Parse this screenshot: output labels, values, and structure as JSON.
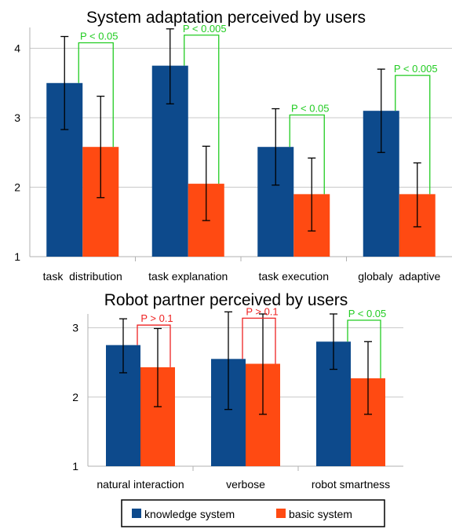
{
  "chart_data": [
    {
      "type": "bar",
      "title": "System adaptation perceived by users",
      "categories": [
        "task  distribution",
        "task explanation",
        "task execution",
        "globaly  adaptive"
      ],
      "ylim": [
        1,
        4.3
      ],
      "yticks": [
        1,
        2,
        3,
        4
      ],
      "series": [
        {
          "name": "knowledge system",
          "values": [
            3.5,
            3.75,
            2.58,
            3.1
          ],
          "err_low": [
            2.83,
            3.2,
            2.03,
            2.5
          ],
          "err_high": [
            4.17,
            4.28,
            3.13,
            3.7
          ]
        },
        {
          "name": "basic system",
          "values": [
            2.58,
            2.05,
            1.9,
            1.9
          ],
          "err_low": [
            1.85,
            1.52,
            1.37,
            1.43
          ],
          "err_high": [
            3.31,
            2.59,
            2.42,
            2.35
          ]
        }
      ],
      "annotations": [
        "P < 0.05",
        "P < 0.005",
        "P < 0.05",
        "P < 0.005"
      ],
      "annotation_colors": [
        "#22cc22",
        "#22cc22",
        "#22cc22",
        "#22cc22"
      ]
    },
    {
      "type": "bar",
      "title": "Robot partner perceived by users",
      "categories": [
        "natural interaction",
        "verbose",
        "robot smartness"
      ],
      "ylim": [
        1,
        3.2
      ],
      "yticks": [
        1,
        2,
        3
      ],
      "series": [
        {
          "name": "knowledge system",
          "values": [
            2.75,
            2.55,
            2.8
          ],
          "err_low": [
            2.35,
            1.82,
            2.4
          ],
          "err_high": [
            3.13,
            3.23,
            3.2
          ]
        },
        {
          "name": "basic system",
          "values": [
            2.43,
            2.48,
            2.27
          ],
          "err_low": [
            1.86,
            1.75,
            1.75
          ],
          "err_high": [
            2.99,
            3.2,
            2.8
          ]
        }
      ],
      "annotations": [
        "P > 0.1",
        "P > 0.1",
        "P < 0.05"
      ],
      "annotation_colors": [
        "#ee2222",
        "#ee2222",
        "#22cc22"
      ]
    }
  ],
  "legend": {
    "items": [
      {
        "label": "knowledge system",
        "color": "#0d4a8c"
      },
      {
        "label": "basic system",
        "color": "#ff4a12"
      }
    ]
  }
}
